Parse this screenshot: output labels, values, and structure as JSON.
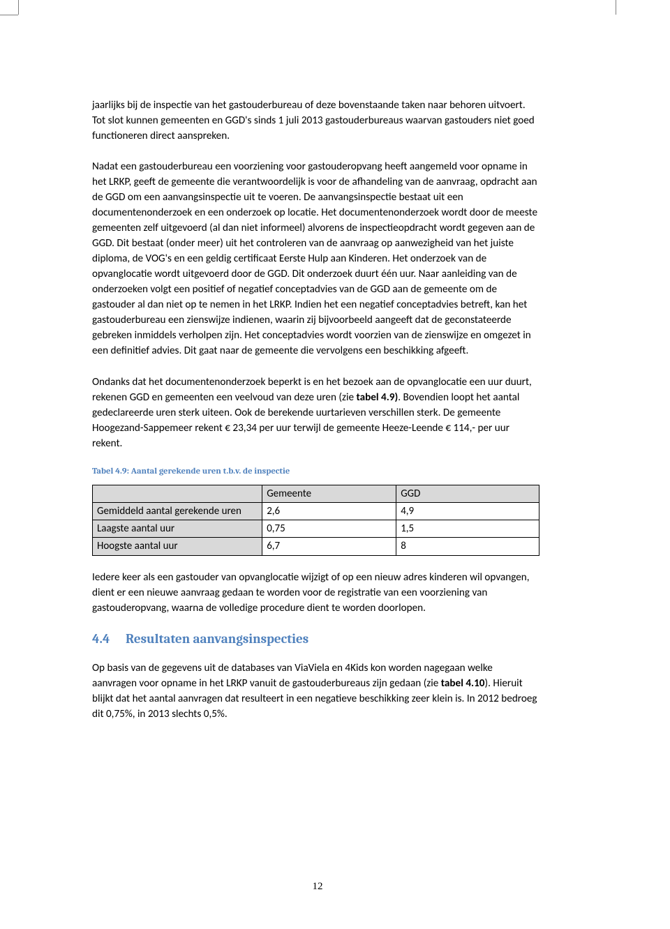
{
  "para1": "jaarlijks bij de inspectie van het gastouderbureau of deze bovenstaande taken naar behoren uitvoert. Tot slot kunnen gemeenten en GGD's sinds 1 juli 2013 gastouderbureaus waarvan gastouders niet goed functioneren direct aanspreken.",
  "para2": "Nadat een gastouderbureau een voorziening voor gastouderopvang heeft aangemeld voor opname in het LRKP, geeft de gemeente die verantwoordelijk is voor de afhandeling van de aanvraag, opdracht aan de GGD om een aanvangsinspectie uit te voeren. De aanvangsinspectie bestaat uit een documentenonderzoek en een onderzoek op locatie. Het documentenonderzoek wordt door de meeste gemeenten zelf uitgevoerd (al dan niet informeel) alvorens de inspectieopdracht wordt gegeven aan de GGD. Dit bestaat (onder meer) uit het controleren van de aanvraag op aanwezigheid van het juiste diploma, de VOG's en een geldig certificaat Eerste Hulp aan Kinderen. Het onderzoek van de opvanglocatie wordt uitgevoerd door de GGD. Dit onderzoek duurt één uur. Naar aanleiding van de onderzoeken volgt een positief of negatief conceptadvies van de GGD aan de gemeente om de gastouder al dan niet op te nemen in het LRKP. Indien het een negatief conceptadvies betreft, kan het gastouderbureau een zienswijze indienen, waarin zij bijvoorbeeld aangeeft dat de geconstateerde gebreken inmiddels verholpen zijn. Het conceptadvies wordt voorzien van de zienswijze en omgezet in een definitief advies. Dit gaat naar de gemeente die vervolgens een beschikking afgeeft.",
  "para3_a": "Ondanks dat het documentenonderzoek beperkt is en het bezoek aan de opvanglocatie een uur duurt, rekenen GGD en gemeenten een veelvoud van deze uren (zie ",
  "para3_bold": "tabel 4.9)",
  "para3_b": ". Bovendien loopt het aantal gedeclareerde uren sterk uiteen. Ook de berekende uurtarieven verschillen sterk. De gemeente Hoogezand-Sappemeer rekent € 23,34 per uur terwijl de gemeente Heeze-Leende € 114,- per uur rekent.",
  "table49": {
    "caption": "Tabel 4.9: Aantal gerekende uren t.b.v. de inspectie",
    "header": [
      "",
      "Gemeente",
      "GGD"
    ],
    "rows": [
      [
        "Gemiddeld aantal gerekende uren",
        "2,6",
        "4,9"
      ],
      [
        "Laagste aantal uur",
        "0,75",
        "1,5"
      ],
      [
        "Hoogste aantal uur",
        "6,7",
        "8"
      ]
    ]
  },
  "para4": "Iedere keer als een gastouder van opvanglocatie wijzigt of op een nieuw adres kinderen wil opvangen, dient er een nieuwe aanvraag gedaan te worden voor de registratie van een voorziening van gastouderopvang, waarna de volledige procedure dient te worden doorlopen.",
  "section": {
    "num": "4.4",
    "title": "Resultaten aanvangsinspecties"
  },
  "para5_a": "Op basis van de gegevens uit de databases van ViaViela en 4Kids kon worden nagegaan welke aanvragen voor opname in het LRKP vanuit de gastouderbureaus zijn gedaan (zie ",
  "para5_bold": "tabel 4.10",
  "para5_b": "). Hieruit blijkt dat het aantal aanvragen dat resulteert in een negatieve beschikking zeer klein is. In 2012 bedroeg dit 0,75%, in 2013 slechts 0,5%.",
  "page_number": "12",
  "colors": {
    "accent": "#4f81bd",
    "table_shade": "#d9d9d9",
    "crop": "#808080"
  }
}
